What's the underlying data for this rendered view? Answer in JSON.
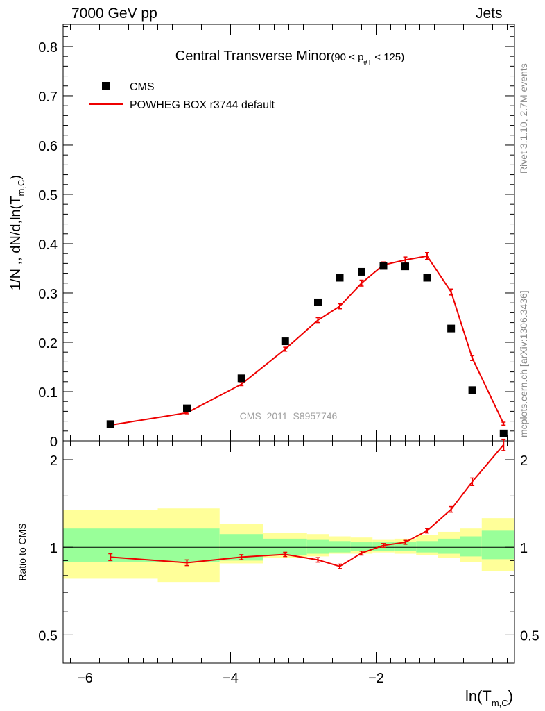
{
  "header": {
    "left": "7000 GeV pp",
    "right": "Jets"
  },
  "side_labels": {
    "rivet": "Rivet 3.1.10,  2.7M events",
    "mcplots": "mcplots.cern.ch [arXiv:1306.3436]"
  },
  "colors": {
    "data": "#000000",
    "mc": "#ee0000",
    "band_inner": "#99ff99",
    "band_outer": "#ffff99"
  },
  "chart_data": [
    {
      "type": "scatter",
      "panel": "main",
      "title": "Central Transverse Minor(90 < p_#T < 125)",
      "title_main": "Central Transverse Minor",
      "title_cut_pre": "(90 < p",
      "title_cut_sub": "#T",
      "title_cut_post": " < 125)",
      "ylabel": "1/N ,, dN/d,ln(T_m,C)",
      "ylabel_main": "1/N ,, dN/d,ln(T",
      "ylabel_sub": "m,C",
      "ylabel_close": ")",
      "watermark": "CMS_2011_S8957746",
      "xlim": [
        -6.3,
        -0.1
      ],
      "ylim": [
        0,
        0.845
      ],
      "yticks": [
        0,
        0.1,
        0.2,
        0.3,
        0.4,
        0.5,
        0.6,
        0.7,
        0.8
      ],
      "ytick_labels": [
        "0",
        "0.1",
        "0.2",
        "0.3",
        "0.4",
        "0.5",
        "0.6",
        "0.7",
        "0.8"
      ],
      "legend": {
        "position": "top-left",
        "entries": [
          "CMS",
          "POWHEG BOX r3744 default"
        ]
      },
      "series": [
        {
          "name": "CMS",
          "style": "markers",
          "x": [
            -5.65,
            -4.6,
            -3.85,
            -3.25,
            -2.8,
            -2.5,
            -2.2,
            -1.9,
            -1.6,
            -1.3,
            -0.97,
            -0.68,
            -0.25
          ],
          "y": [
            0.034,
            0.066,
            0.127,
            0.202,
            0.281,
            0.331,
            0.343,
            0.355,
            0.354,
            0.331,
            0.228,
            0.103,
            0.015
          ]
        },
        {
          "name": "POWHEG BOX r3744 default",
          "style": "line",
          "x": [
            -5.65,
            -4.6,
            -3.85,
            -3.25,
            -2.8,
            -2.5,
            -2.2,
            -1.9,
            -1.6,
            -1.3,
            -0.97,
            -0.68,
            -0.25
          ],
          "y": [
            0.032,
            0.057,
            0.115,
            0.186,
            0.245,
            0.273,
            0.32,
            0.357,
            0.367,
            0.375,
            0.302,
            0.168,
            0.035
          ],
          "yerr": [
            0.002,
            0.002,
            0.003,
            0.004,
            0.005,
            0.005,
            0.006,
            0.006,
            0.006,
            0.007,
            0.006,
            0.005,
            0.003
          ]
        }
      ]
    },
    {
      "type": "line",
      "panel": "ratio",
      "ylabel": "Ratio to CMS",
      "xlabel": "ln(T_m,C)",
      "xlabel_main": "ln(T",
      "xlabel_sub": "m,C",
      "xlabel_close": ")",
      "xlim": [
        -6.3,
        -0.1
      ],
      "ylim": [
        0.4,
        2.32
      ],
      "yscale": "log",
      "xticks": [
        -6,
        -4,
        -2
      ],
      "xtick_labels": [
        "−6",
        "−4",
        "−2"
      ],
      "yticks": [
        0.5,
        1,
        2
      ],
      "ytick_labels": [
        "0.5",
        "1",
        "2"
      ],
      "reference_line": 1,
      "bands": [
        {
          "x0": -6.3,
          "x1": -5.0,
          "inner": [
            0.89,
            1.16
          ],
          "outer": [
            0.78,
            1.34
          ]
        },
        {
          "x0": -5.0,
          "x1": -4.15,
          "inner": [
            0.89,
            1.16
          ],
          "outer": [
            0.76,
            1.36
          ]
        },
        {
          "x0": -4.15,
          "x1": -3.55,
          "inner": [
            0.9,
            1.11
          ],
          "outer": [
            0.88,
            1.2
          ]
        },
        {
          "x0": -3.55,
          "x1": -2.95,
          "inner": [
            0.94,
            1.07
          ],
          "outer": [
            0.92,
            1.12
          ]
        },
        {
          "x0": -2.95,
          "x1": -2.65,
          "inner": [
            0.95,
            1.06
          ],
          "outer": [
            0.93,
            1.11
          ]
        },
        {
          "x0": -2.65,
          "x1": -2.35,
          "inner": [
            0.96,
            1.05
          ],
          "outer": [
            0.95,
            1.09
          ]
        },
        {
          "x0": -2.35,
          "x1": -2.05,
          "inner": [
            0.97,
            1.04
          ],
          "outer": [
            0.95,
            1.08
          ]
        },
        {
          "x0": -2.05,
          "x1": -1.75,
          "inner": [
            0.97,
            1.04
          ],
          "outer": [
            0.96,
            1.06
          ]
        },
        {
          "x0": -1.75,
          "x1": -1.45,
          "inner": [
            0.97,
            1.04
          ],
          "outer": [
            0.95,
            1.07
          ]
        },
        {
          "x0": -1.45,
          "x1": -1.15,
          "inner": [
            0.96,
            1.05
          ],
          "outer": [
            0.94,
            1.1
          ]
        },
        {
          "x0": -1.15,
          "x1": -0.85,
          "inner": [
            0.95,
            1.07
          ],
          "outer": [
            0.92,
            1.13
          ]
        },
        {
          "x0": -0.85,
          "x1": -0.55,
          "inner": [
            0.93,
            1.09
          ],
          "outer": [
            0.89,
            1.16
          ]
        },
        {
          "x0": -0.55,
          "x1": -0.1,
          "inner": [
            0.91,
            1.14
          ],
          "outer": [
            0.83,
            1.26
          ]
        }
      ],
      "series": [
        {
          "name": "POWHEG BOX r3744 default",
          "x": [
            -5.65,
            -4.6,
            -3.85,
            -3.25,
            -2.8,
            -2.5,
            -2.2,
            -1.9,
            -1.6,
            -1.3,
            -0.97,
            -0.68,
            -0.25
          ],
          "y": [
            0.925,
            0.885,
            0.925,
            0.945,
            0.905,
            0.86,
            0.955,
            1.015,
            1.04,
            1.14,
            1.35,
            1.68,
            2.25
          ],
          "yerr": [
            0.025,
            0.02,
            0.018,
            0.016,
            0.016,
            0.015,
            0.015,
            0.015,
            0.016,
            0.02,
            0.03,
            0.05,
            0.1
          ]
        }
      ]
    }
  ]
}
